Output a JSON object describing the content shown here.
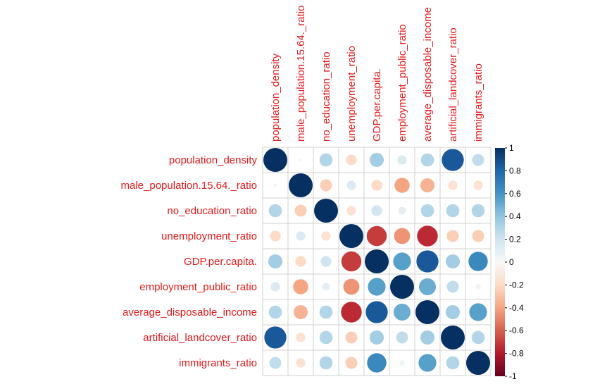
{
  "chart_data": {
    "type": "heatmap",
    "subtype": "correlation-circles",
    "title": "",
    "variables": [
      "population_density",
      "male_population.15.64._ratio",
      "no_education_ratio",
      "unemployment_ratio",
      "GDP.per.capita.",
      "employment_public_ratio",
      "average_disposable_income",
      "artificial_landcover_ratio",
      "immigrants_ratio"
    ],
    "matrix": [
      [
        1.0,
        0.02,
        0.3,
        -0.2,
        0.35,
        0.15,
        0.3,
        0.85,
        0.25
      ],
      [
        0.02,
        1.0,
        -0.25,
        0.15,
        -0.2,
        -0.4,
        -0.35,
        -0.15,
        -0.15
      ],
      [
        0.3,
        -0.25,
        1.0,
        -0.15,
        0.2,
        0.1,
        0.3,
        0.3,
        0.3
      ],
      [
        -0.2,
        0.15,
        -0.15,
        1.0,
        -0.7,
        -0.45,
        -0.75,
        -0.25,
        -0.25
      ],
      [
        0.35,
        -0.2,
        0.2,
        -0.7,
        1.0,
        0.55,
        0.85,
        0.35,
        0.65
      ],
      [
        0.15,
        -0.4,
        0.1,
        -0.45,
        0.55,
        1.0,
        0.5,
        0.25,
        0.05
      ],
      [
        0.3,
        -0.35,
        0.3,
        -0.75,
        0.85,
        0.5,
        1.0,
        0.35,
        0.55
      ],
      [
        0.85,
        -0.15,
        0.3,
        -0.25,
        0.35,
        0.25,
        0.35,
        1.0,
        0.3
      ],
      [
        0.25,
        -0.15,
        0.3,
        -0.25,
        0.65,
        0.05,
        0.55,
        0.3,
        1.0
      ]
    ],
    "colorbar": {
      "range": [
        -1,
        1
      ],
      "ticks": [
        "-1",
        "-0.8",
        "-0.6",
        "-0.4",
        "-0.2",
        "0",
        "0.2",
        "0.4",
        "0.6",
        "0.8",
        "1"
      ]
    },
    "colors": {
      "negative": "#67001F",
      "neutral": "#F7F7F7",
      "positive": "#053061",
      "label": "#E31A1C",
      "grid": "#D0D0D0"
    }
  }
}
